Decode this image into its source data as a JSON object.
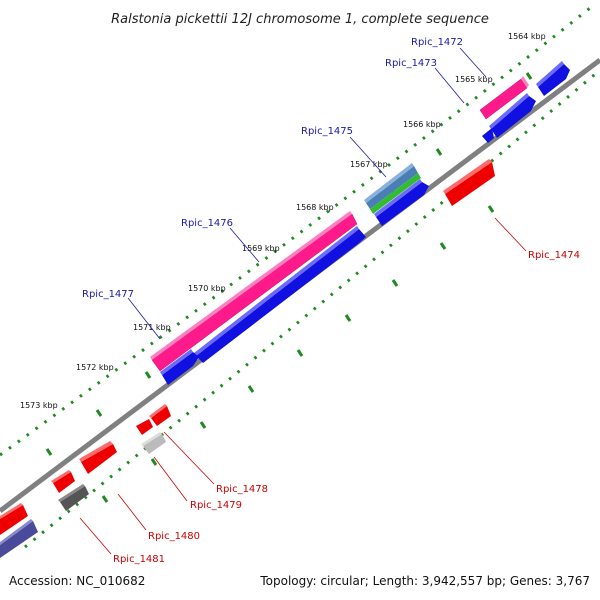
{
  "title": "Ralstonia pickettii 12J chromosome 1, complete sequence",
  "footer": {
    "accession": "Accession: NC_010682",
    "summary": "Topology: circular; Length: 3,942,557 bp; Genes: 3,767"
  },
  "colors": {
    "backbone": "#808080",
    "dotted": "#1f8a1f",
    "label_forward": "#1a1aa8",
    "label_reverse": "#cc0000",
    "pink": "#ff1a8c",
    "blue": "#1010e0",
    "red": "#ee0000",
    "gray_light": "#bbbbbb",
    "gray_dark": "#555555",
    "violet": "#4a4a9a",
    "steel": "#4a7fb5",
    "green": "#33bb33"
  },
  "ticks": [
    "1564 kbp",
    "1565 kbp",
    "1566 kbp",
    "1567 kbp",
    "1568 kbp",
    "1569 kbp",
    "1570 kbp",
    "1571 kbp",
    "1572 kbp",
    "1573 kbp"
  ],
  "genes_forward": [
    "Rpic_1472",
    "Rpic_1473",
    "Rpic_1475",
    "Rpic_1476",
    "Rpic_1477"
  ],
  "genes_reverse": [
    "Rpic_1474",
    "Rpic_1478",
    "Rpic_1479",
    "Rpic_1480",
    "Rpic_1481"
  ]
}
